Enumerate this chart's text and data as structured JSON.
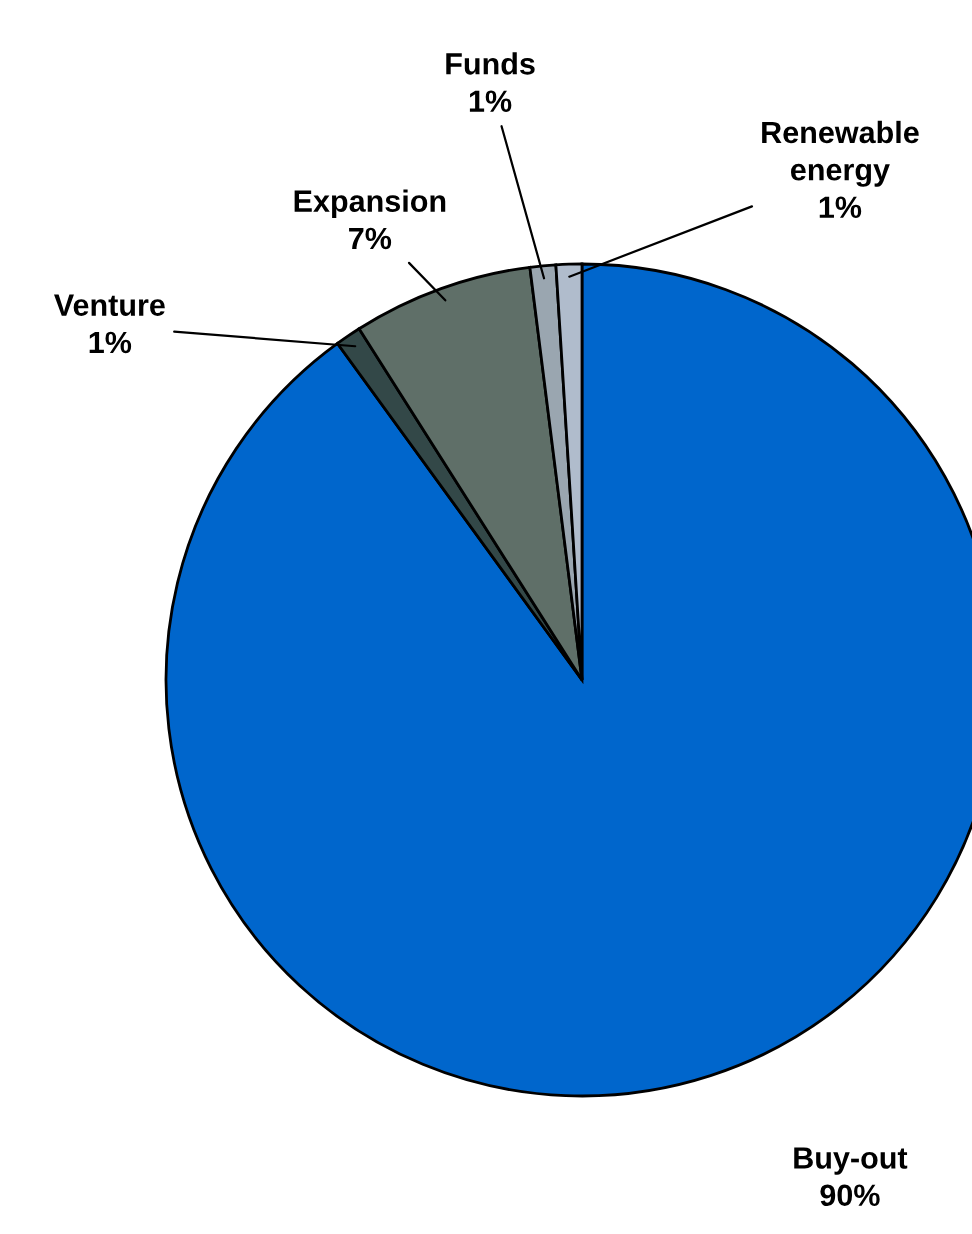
{
  "chart_data": {
    "type": "pie",
    "categories": [
      "Buy-out",
      "Venture",
      "Expansion",
      "Funds",
      "Renewable energy"
    ],
    "values": [
      90,
      1,
      7,
      1,
      1
    ],
    "value_labels": [
      "90%",
      "1%",
      "7%",
      "1%",
      "1%"
    ],
    "colors": [
      "#0066cc",
      "#334848",
      "#5f6f68",
      "#9aa6b0",
      "#b0bccc"
    ]
  }
}
